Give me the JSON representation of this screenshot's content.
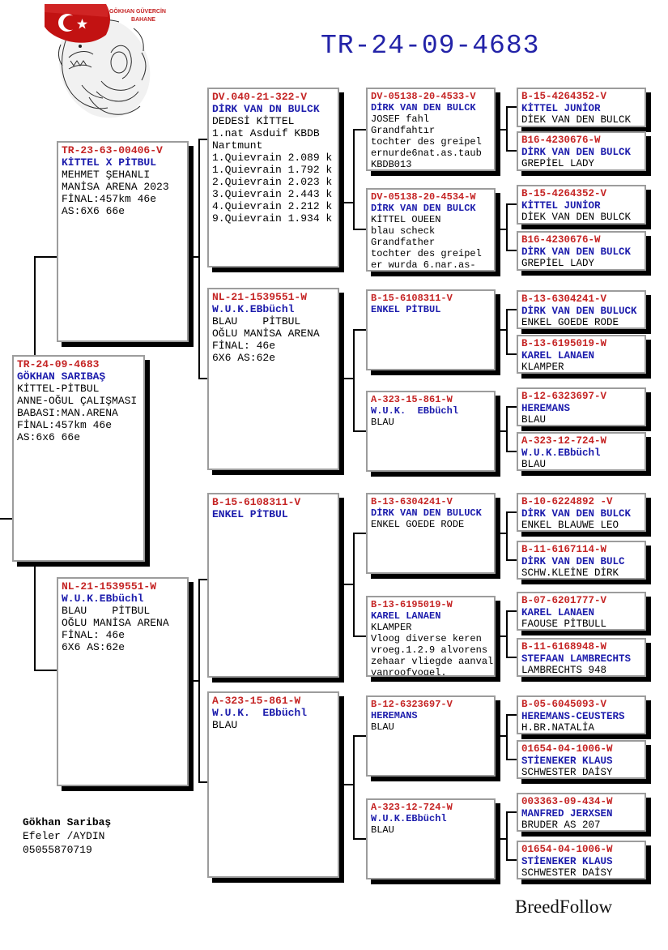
{
  "title": "TR-24-09-4683",
  "logo": {
    "line1": "GÖKHAN GÜVERCİN",
    "line2": "BAHANE"
  },
  "subject": {
    "ring": "TR-24-09-4683",
    "name": "GÖKHAN SARIBAŞ",
    "lines": [
      "KİTTEL-PİTBUL",
      "ANNE-OĞUL ÇALIŞMASI",
      "BABASI:MAN.ARENA",
      "FİNAL:457km 46e",
      "AS:6x6 66e"
    ]
  },
  "sire": {
    "ring": "TR-23-63-00406-V",
    "name": "KİTTEL X PİTBUL",
    "lines": [
      "MEHMET ŞEHANLI",
      "MANİSA ARENA 2023",
      "FİNAL:457km 46e",
      "AS:6X6 66e"
    ]
  },
  "dam": {
    "ring": "NL-21-1539551-W",
    "name": "W.U.K.EBbüchl",
    "lines": [
      "BLAU    PİTBUL",
      "OĞLU MANİSA ARENA",
      "FİNAL: 46e",
      "6X6 AS:62e"
    ]
  },
  "gen3": [
    {
      "ring": "DV.040-21-322-V",
      "name": "DİRK VAN DN BULCK",
      "lines": [
        "DEDESİ KİTTEL",
        "1.nat Asduif KBDB",
        "Nartmunt",
        "1.Quievrain 2.089 k",
        "1.Quievrain 1.792 k",
        "2.Quievrain 2.023 k",
        "3.Quievrain 2.443 k",
        "4.Quievrain 2.212 k",
        "9.Quievrain 1.934 k"
      ]
    },
    {
      "ring": "NL-21-1539551-W",
      "name": "W.U.K.EBbüchl",
      "lines": [
        "BLAU    PİTBUL",
        "OĞLU MANİSA ARENA",
        "FİNAL: 46e",
        "6X6 AS:62e"
      ]
    },
    {
      "ring": "B-15-6108311-V",
      "name": "ENKEL PİTBUL",
      "lines": []
    },
    {
      "ring": "A-323-15-861-W",
      "name": "W.U.K.  EBbüchl",
      "lines": [
        "BLAU"
      ]
    }
  ],
  "gen4": [
    {
      "ring": "DV-05138-20-4533-V",
      "name": "DİRK VAN DEN BULCK",
      "lines": [
        "JOSEF fahl",
        "Grandfahtır",
        "tochter des greipel",
        "ernurde6nat.as.taub",
        "KBDB013"
      ]
    },
    {
      "ring": "DV-05138-20-4534-W",
      "name": "DİRK VAN DEN BULCK",
      "lines": [
        "KİTTEL OUEEN",
        "blau scheck",
        "Grandfather",
        "tochter des greipel",
        "er wurda 6.nar.as-"
      ]
    },
    {
      "ring": "B-15-6108311-V",
      "name": "ENKEL PİTBUL",
      "lines": []
    },
    {
      "ring": "A-323-15-861-W",
      "name": "W.U.K.  EBbüchl",
      "lines": [
        "BLAU"
      ]
    },
    {
      "ring": "B-13-6304241-V",
      "name": "DİRK VAN DEN BULUCK",
      "lines": [
        "ENKEL GOEDE RODE"
      ]
    },
    {
      "ring": "B-13-6195019-W",
      "name": "KAREL LANAEN",
      "lines": [
        "KLAMPER",
        "Vloog diverse keren",
        "vroeg.1.2.9 alvorens",
        "zehaar vliegde aanval",
        "vanroofvogel."
      ]
    },
    {
      "ring": "B-12-6323697-V",
      "name": "HEREMANS",
      "lines": [
        "BLAU"
      ]
    },
    {
      "ring": "A-323-12-724-W",
      "name": "W.U.K.EBbüchl",
      "lines": [
        "BLAU"
      ]
    }
  ],
  "gen5": [
    {
      "ring": "B-15-4264352-V",
      "name": "KİTTEL JUNİOR",
      "lines": [
        "DİEK VAN DEN BULCK"
      ]
    },
    {
      "ring": "B16-4230676-W",
      "name": "DİRK VAN DEN BULCK",
      "lines": [
        "GREPİEL LADY"
      ]
    },
    {
      "ring": "B-15-4264352-V",
      "name": "KİTTEL JUNİOR",
      "lines": [
        "DİEK VAN DEN BULCK"
      ]
    },
    {
      "ring": "B16-4230676-W",
      "name": "DİRK VAN DEN BULCK",
      "lines": [
        "GREPİEL LADY"
      ]
    },
    {
      "ring": "B-13-6304241-V",
      "name": "DİRK VAN DEN BULUCK",
      "lines": [
        "ENKEL GOEDE RODE"
      ]
    },
    {
      "ring": "B-13-6195019-W",
      "name": "KAREL LANAEN",
      "lines": [
        "KLAMPER"
      ]
    },
    {
      "ring": "B-12-6323697-V",
      "name": "HEREMANS",
      "lines": [
        "BLAU"
      ]
    },
    {
      "ring": "A-323-12-724-W",
      "name": "W.U.K.EBbüchl",
      "lines": [
        "BLAU"
      ]
    },
    {
      "ring": "B-10-6224892 -V",
      "name": "DİRK VAN DEN BULCK",
      "lines": [
        "ENKEL BLAUWE LEO"
      ]
    },
    {
      "ring": "B-11-6167114-W",
      "name": "DİRK VAN DEN BULC",
      "lines": [
        "SCHW.KLEİNE DİRK"
      ]
    },
    {
      "ring": "B-07-6201777-V",
      "name": "KAREL LANAEN",
      "lines": [
        "FAOUSE PİTBULL"
      ]
    },
    {
      "ring": "B-11-6168948-W",
      "name": "STEFAAN LAMBRECHTS",
      "lines": [
        "LAMBRECHTS 948"
      ]
    },
    {
      "ring": "B-05-6045093-V",
      "name": "HEREMANS-CEUSTERS",
      "lines": [
        "H.BR.NATALİA"
      ]
    },
    {
      "ring": "01654-04-1006-W",
      "name": "STİENEKER KLAUS",
      "lines": [
        "SCHWESTER DAİSY"
      ]
    },
    {
      "ring": "003363-09-434-W",
      "name": "MANFRED JERXSEN",
      "lines": [
        "BRUDER AS 207"
      ]
    },
    {
      "ring": "01654-04-1006-W",
      "name": "STİENEKER KLAUS",
      "lines": [
        "SCHWESTER DAİSY"
      ]
    }
  ],
  "contact": {
    "owner": "Gökhan Saribaş",
    "location": "Efeler /AYDIN",
    "phone": "05055870719"
  },
  "brand": "BreedFollow",
  "colors": {
    "ring_red": "#c52525",
    "name_blue": "#1c1cac",
    "title_blue": "#2323a8",
    "shadow": "#000000",
    "border": "#9c9c9c"
  }
}
